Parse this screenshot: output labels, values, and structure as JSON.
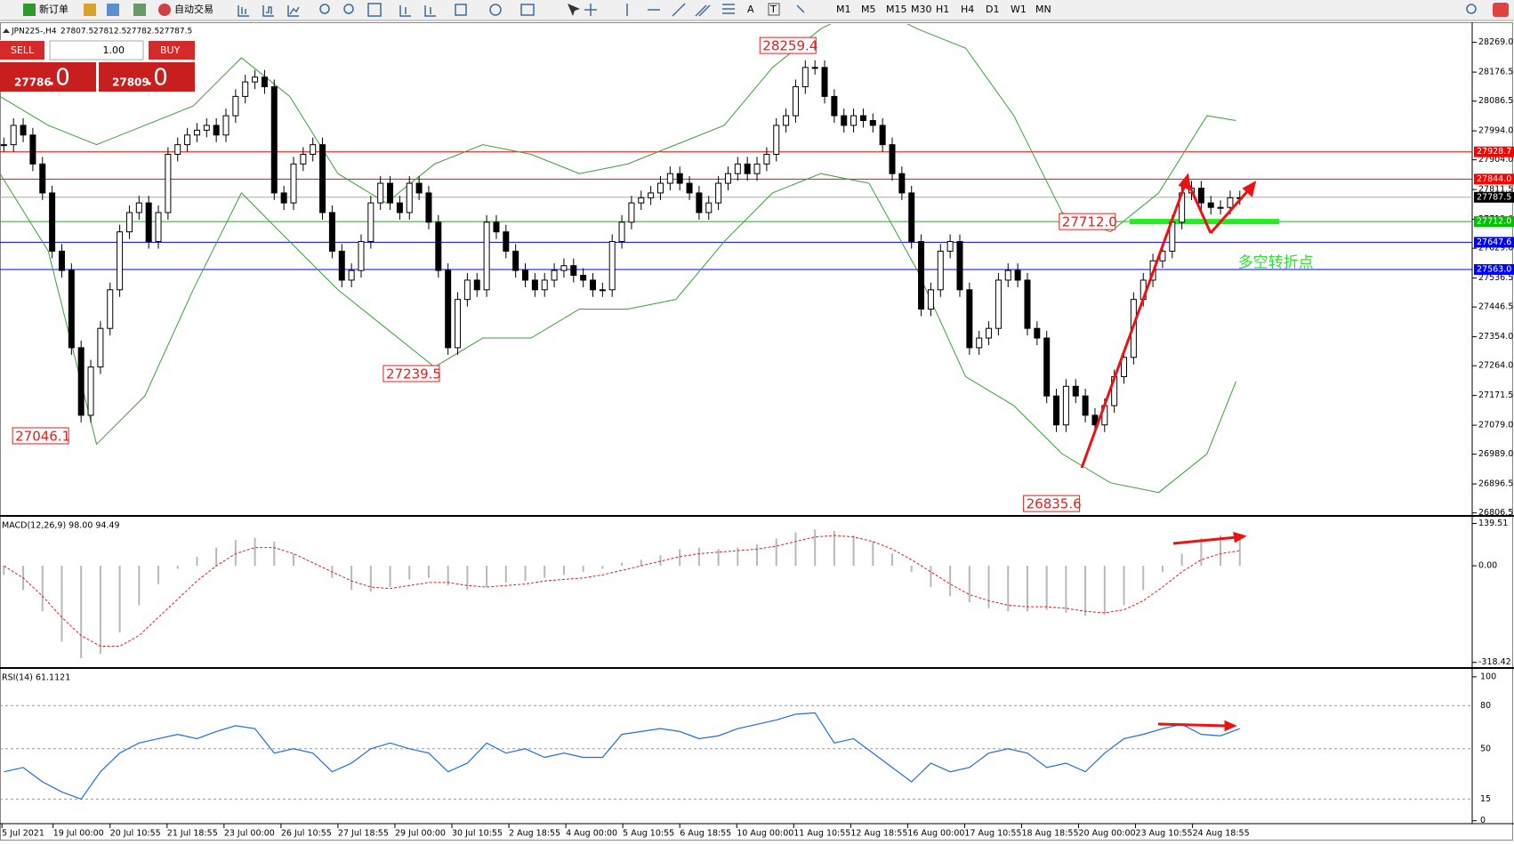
{
  "toolbar": {
    "new_order": "新订单",
    "auto_trading": "自动交易",
    "text_tool": "A",
    "label_tool": "T",
    "timeframes": [
      "M1",
      "M5",
      "M15",
      "M30",
      "H1",
      "H4",
      "D1",
      "W1",
      "MN"
    ]
  },
  "symbol_info": {
    "symbol": "JPN225-,H4",
    "ohlc": [
      "27807.5",
      "27812.5",
      "27782.5",
      "27787.5"
    ]
  },
  "trade_panel": {
    "sell": "SELL",
    "buy": "BUY",
    "lots": "1.00",
    "sell_price": "27786",
    "sell_fraction": ".0",
    "buy_price": "27809",
    "buy_fraction": ".0"
  },
  "chart_data": [
    {
      "type": "candlestick",
      "closes": [
        27951,
        28011,
        27981,
        27891,
        27801,
        27620,
        27560,
        27320,
        27110,
        27260,
        27380,
        27500,
        27680,
        27740,
        27770,
        27650,
        27740,
        27921,
        27951,
        27981,
        27996,
        28011,
        27981,
        28041,
        28101,
        28146,
        28161,
        28131,
        27801,
        27770,
        27891,
        27921,
        27951,
        27740,
        27620,
        27530,
        27560,
        27650,
        27770,
        27831,
        27770,
        27740,
        27831,
        27801,
        27710,
        27560,
        27320,
        27470,
        27530,
        27500,
        27710,
        27680,
        27620,
        27560,
        27530,
        27500,
        27530,
        27560,
        27575,
        27545,
        27530,
        27500,
        27500,
        27650,
        27710,
        27770,
        27786,
        27801,
        27831,
        27861,
        27831,
        27801,
        27740,
        27770,
        27831,
        27861,
        27891,
        27861,
        27891,
        27921,
        28011,
        28041,
        28131,
        28191,
        28191,
        28101,
        28041,
        28011,
        28041,
        28026,
        28011,
        27951,
        27861,
        27801,
        27650,
        27440,
        27500,
        27620,
        27650,
        27500,
        27320,
        27350,
        27380,
        27530,
        27560,
        27530,
        27380,
        27350,
        27170,
        27080,
        27200,
        27170,
        27110,
        27080,
        27140,
        27230,
        27290,
        27470,
        27530,
        27590,
        27620,
        27710,
        27801,
        27816,
        27770,
        27756,
        27756,
        27786,
        27786
      ],
      "bollinger_upper": [
        28101,
        28011,
        27951,
        28011,
        28071,
        28221,
        28101,
        27861,
        27770,
        27891,
        27951,
        27921,
        27861,
        27891,
        27951,
        28011,
        28191,
        28311,
        28386,
        28311,
        28251,
        28041,
        27740,
        27680,
        27801,
        28041,
        28026
      ],
      "bollinger_lower": [
        27861,
        27620,
        27020,
        27170,
        27500,
        27801,
        27650,
        27500,
        27380,
        27260,
        27350,
        27350,
        27440,
        27440,
        27470,
        27650,
        27801,
        27861,
        27831,
        27560,
        27230,
        27140,
        26990,
        26900,
        26870,
        26990,
        27215
      ],
      "ylim": [
        26800,
        28326
      ],
      "yticks": [
        {
          "value": 28269,
          "label": "28269.0"
        },
        28176.5,
        28086.5,
        {
          "value": 27994,
          "label": "27994.0"
        },
        {
          "value": 27904,
          "label": "27904.0"
        },
        27811.5,
        {
          "value": 27719,
          "label": "27719.0"
        },
        {
          "value": 27629,
          "label": "27629.0"
        },
        27536.5,
        27446.5,
        {
          "value": 27354,
          "label": "27354.0"
        },
        {
          "value": 27264,
          "label": "27264.0"
        },
        27171.5,
        {
          "value": 27079,
          "label": "27079.0"
        },
        {
          "value": 26989,
          "label": "26989.0"
        },
        26896.5,
        26806.5
      ],
      "levels": [
        {
          "value": 27928.7,
          "color": "#ff0000"
        },
        {
          "value": 27844,
          "label": "27844.0",
          "color": "#ff0000"
        },
        {
          "value": 27787.5,
          "color": "#000000"
        },
        {
          "value": 27712,
          "label": "27712.0",
          "color": "#00c000"
        },
        {
          "value": 27647.6,
          "color": "#0000ff"
        },
        {
          "value": 27563,
          "label": "27563.0",
          "color": "#0000ff"
        }
      ],
      "annotations": [
        28259.4,
        27239.5,
        27046.1,
        26835.6,
        {
          "value": 27712,
          "label": "27712.0"
        }
      ],
      "note": "多空转折点",
      "categories": [
        "5 Jul 2021",
        "19 Jul 00:00",
        "20 Jul 10:55",
        "21 Jul 18:55",
        "23 Jul 00:00",
        "26 Jul 10:55",
        "27 Jul 18:55",
        "29 Jul 00:00",
        "30 Jul 10:55",
        "2 Aug 18:55",
        "4 Aug 00:00",
        "5 Aug 10:55",
        "6 Aug 18:55",
        "10 Aug 00:00",
        "11 Aug 10:55",
        "12 Aug 18:55",
        "16 Aug 00:00",
        "17 Aug 10:55",
        "18 Aug 18:55",
        "20 Aug 00:00",
        "23 Aug 10:55",
        "24 Aug 18:55"
      ]
    },
    {
      "type": "macd",
      "title": "MACD(12,26,9) 98.00 94.49",
      "histogram": [
        -30,
        -80,
        -150,
        -250,
        -305,
        -290,
        -220,
        -130,
        -60,
        -10,
        30,
        60,
        85,
        92,
        80,
        40,
        0,
        -40,
        -80,
        -85,
        -70,
        -45,
        -40,
        -65,
        -80,
        -70,
        -55,
        -50,
        -40,
        -30,
        -20,
        -10,
        10,
        20,
        35,
        55,
        60,
        55,
        60,
        70,
        90,
        110,
        120,
        115,
        100,
        80,
        40,
        -20,
        -70,
        -100,
        -120,
        -140,
        -150,
        -150,
        -145,
        -155,
        -165,
        -160,
        -130,
        -80,
        -20,
        40,
        90,
        100,
        95
      ],
      "signal": [
        0,
        -40,
        -100,
        -170,
        -230,
        -265,
        -265,
        -230,
        -170,
        -110,
        -50,
        0,
        40,
        60,
        60,
        40,
        10,
        -20,
        -50,
        -70,
        -75,
        -65,
        -55,
        -55,
        -65,
        -70,
        -65,
        -60,
        -50,
        -45,
        -40,
        -30,
        -15,
        0,
        15,
        30,
        40,
        45,
        50,
        55,
        65,
        80,
        95,
        100,
        95,
        80,
        55,
        20,
        -20,
        -60,
        -95,
        -115,
        -130,
        -135,
        -135,
        -140,
        -150,
        -155,
        -145,
        -115,
        -70,
        -20,
        20,
        40,
        50
      ],
      "ylim": [
        -331,
        158.6
      ],
      "yticks": [
        139.51,
        {
          "value": 0,
          "label": "0.00"
        },
        -318.42
      ]
    },
    {
      "type": "line",
      "title": "RSI(14) 61.1121",
      "values": [
        34,
        37,
        27,
        20,
        15,
        34,
        47,
        54,
        57,
        60,
        57,
        62,
        66,
        64,
        47,
        50,
        47,
        34,
        40,
        50,
        54,
        50,
        47,
        34,
        40,
        54,
        47,
        50,
        44,
        47,
        44,
        44,
        60,
        62,
        64,
        62,
        57,
        59,
        64,
        67,
        70,
        74,
        75,
        54,
        57,
        47,
        37,
        27,
        40,
        34,
        37,
        47,
        50,
        47,
        37,
        40,
        34,
        47,
        57,
        60,
        64,
        67,
        60,
        59,
        64
      ],
      "color": "#1e6fe0",
      "ylim": [
        0,
        100
      ],
      "yticks": [
        100,
        80,
        50,
        15,
        0
      ]
    }
  ]
}
